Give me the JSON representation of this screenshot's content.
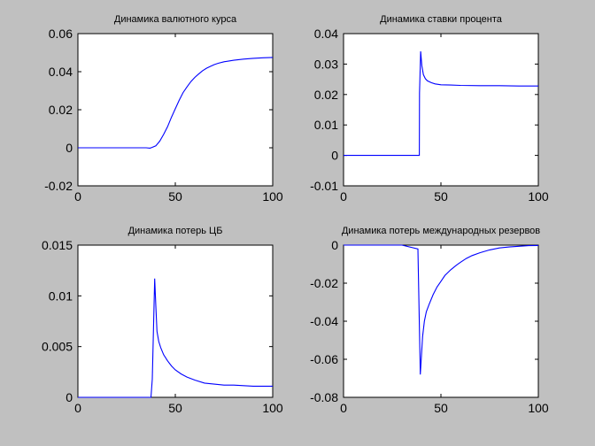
{
  "chart_data": [
    {
      "type": "line",
      "title": "Динамика валютного курса",
      "xlim": [
        0,
        100
      ],
      "ylim": [
        -0.02,
        0.06
      ],
      "xticks": [
        "0",
        "50",
        "100"
      ],
      "yticks": [
        "-0.02",
        "0",
        "0.02",
        "0.04",
        "0.06"
      ],
      "color": "#0000ff",
      "series": [
        {
          "x": [
            0,
            10,
            20,
            30,
            35,
            37,
            38,
            40,
            42,
            44,
            46,
            48,
            50,
            52,
            54,
            56,
            58,
            60,
            62,
            64,
            66,
            68,
            70,
            72,
            75,
            80,
            85,
            90,
            95,
            100
          ],
          "y": [
            0,
            0,
            0,
            0,
            0,
            -0.0002,
            0.0002,
            0.001,
            0.0035,
            0.007,
            0.011,
            0.016,
            0.0205,
            0.025,
            0.029,
            0.032,
            0.0348,
            0.037,
            0.0388,
            0.0405,
            0.0418,
            0.0428,
            0.0437,
            0.0444,
            0.0452,
            0.046,
            0.0466,
            0.047,
            0.0473,
            0.0475
          ]
        }
      ]
    },
    {
      "type": "line",
      "title": "Динамика ставки процента",
      "xlim": [
        0,
        100
      ],
      "ylim": [
        -0.01,
        0.04
      ],
      "xticks": [
        "0",
        "50",
        "100"
      ],
      "yticks": [
        "-0.01",
        "0",
        "0.01",
        "0.02",
        "0.03",
        "0.04"
      ],
      "color": "#0000ff",
      "series": [
        {
          "x": [
            0,
            10,
            20,
            30,
            38.9,
            39,
            39.6,
            40.2,
            41,
            42,
            43,
            45,
            47,
            50,
            55,
            60,
            70,
            80,
            90,
            100
          ],
          "y": [
            0,
            0,
            0,
            0,
            0,
            0.0205,
            0.0342,
            0.0295,
            0.0265,
            0.0252,
            0.0245,
            0.0239,
            0.0235,
            0.0232,
            0.0231,
            0.023,
            0.0229,
            0.0229,
            0.0228,
            0.0228
          ]
        }
      ]
    },
    {
      "type": "line",
      "title": "Динамика потерь ЦБ",
      "xlim": [
        0,
        100
      ],
      "ylim": [
        0,
        0.015
      ],
      "xticks": [
        "0",
        "50",
        "100"
      ],
      "yticks": [
        "0",
        "0.005",
        "0.01",
        "0.015"
      ],
      "color": "#0000ff",
      "series": [
        {
          "x": [
            0,
            10,
            20,
            30,
            37.5,
            38.2,
            39.4,
            40,
            40.6,
            41.5,
            42.5,
            44,
            46,
            48,
            50,
            53,
            56,
            60,
            65,
            70,
            75,
            80,
            90,
            100
          ],
          "y": [
            0,
            0,
            0,
            0,
            0,
            0.0018,
            0.0117,
            0.009,
            0.0065,
            0.0055,
            0.0049,
            0.0042,
            0.0036,
            0.0031,
            0.0027,
            0.0023,
            0.002,
            0.0017,
            0.0014,
            0.0013,
            0.0012,
            0.0012,
            0.0011,
            0.0011
          ]
        }
      ]
    },
    {
      "type": "line",
      "title": "Динамика потерь международных резервов",
      "xlim": [
        0,
        100
      ],
      "ylim": [
        -0.08,
        0
      ],
      "xticks": [
        "0",
        "50",
        "100"
      ],
      "yticks": [
        "-0.08",
        "-0.06",
        "-0.04",
        "-0.02",
        "0"
      ],
      "color": "#0000ff",
      "series": [
        {
          "x": [
            0,
            10,
            20,
            30,
            38.2,
            39.4,
            40,
            40.6,
            41.5,
            42.5,
            44,
            46,
            48,
            50,
            52,
            55,
            58,
            60,
            63,
            66,
            70,
            75,
            80,
            85,
            90,
            95,
            100
          ],
          "y": [
            0,
            0,
            0,
            0,
            -0.002,
            -0.068,
            -0.058,
            -0.048,
            -0.04,
            -0.035,
            -0.031,
            -0.026,
            -0.022,
            -0.019,
            -0.016,
            -0.013,
            -0.0105,
            -0.009,
            -0.007,
            -0.0055,
            -0.004,
            -0.0025,
            -0.0015,
            -0.001,
            -0.0006,
            -0.0003,
            -0.0002
          ]
        }
      ]
    }
  ]
}
